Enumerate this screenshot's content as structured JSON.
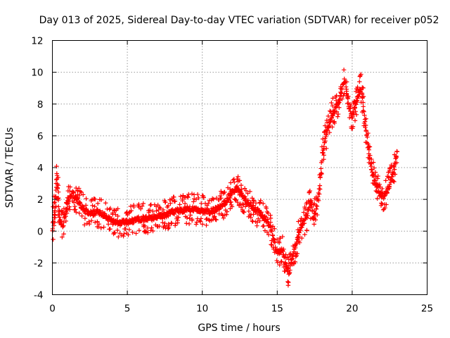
{
  "chart_data": {
    "type": "scatter",
    "title": "Day 013 of 2025, Sidereal Day-to-day VTEC variation (SDTVAR) for receiver p052",
    "xlabel": "GPS time / hours",
    "ylabel": "SDTVAR / TECUs",
    "xlim": [
      0,
      25
    ],
    "ylim": [
      -4,
      12
    ],
    "xticks": [
      0,
      5,
      10,
      15,
      20,
      25
    ],
    "yticks": [
      -4,
      -2,
      0,
      2,
      4,
      6,
      8,
      10,
      12
    ],
    "grid": true,
    "marker": "+",
    "color": "#ff0000",
    "series": [
      {
        "name": "SDTVAR",
        "trace": [
          [
            0.0,
            0.0
          ],
          [
            0.1,
            0.9
          ],
          [
            0.2,
            2.0
          ],
          [
            0.3,
            3.4
          ],
          [
            0.4,
            2.2
          ],
          [
            0.5,
            0.6
          ],
          [
            0.7,
            0.4
          ],
          [
            1.0,
            1.7
          ],
          [
            1.3,
            2.4
          ],
          [
            1.6,
            2.1
          ],
          [
            2.0,
            1.4
          ],
          [
            2.5,
            1.1
          ],
          [
            3.0,
            1.2
          ],
          [
            3.5,
            1.0
          ],
          [
            4.0,
            0.6
          ],
          [
            4.5,
            0.5
          ],
          [
            5.0,
            0.6
          ],
          [
            5.5,
            0.7
          ],
          [
            6.0,
            0.8
          ],
          [
            6.5,
            0.8
          ],
          [
            7.0,
            0.9
          ],
          [
            7.5,
            1.0
          ],
          [
            8.0,
            1.2
          ],
          [
            8.5,
            1.3
          ],
          [
            9.0,
            1.4
          ],
          [
            9.5,
            1.4
          ],
          [
            10.0,
            1.3
          ],
          [
            10.5,
            1.2
          ],
          [
            11.0,
            1.4
          ],
          [
            11.5,
            1.8
          ],
          [
            12.0,
            2.5
          ],
          [
            12.3,
            2.7
          ],
          [
            12.6,
            2.3
          ],
          [
            13.0,
            1.8
          ],
          [
            13.5,
            1.4
          ],
          [
            14.0,
            1.0
          ],
          [
            14.5,
            0.4
          ],
          [
            14.8,
            -0.6
          ],
          [
            15.0,
            -1.4
          ],
          [
            15.3,
            -1.1
          ],
          [
            15.6,
            -2.2
          ],
          [
            15.8,
            -2.6
          ],
          [
            16.0,
            -1.6
          ],
          [
            16.3,
            -0.6
          ],
          [
            16.6,
            0.3
          ],
          [
            17.0,
            1.0
          ],
          [
            17.2,
            2.0
          ],
          [
            17.4,
            0.8
          ],
          [
            17.6,
            1.3
          ],
          [
            17.8,
            2.7
          ],
          [
            18.0,
            4.8
          ],
          [
            18.3,
            6.2
          ],
          [
            18.6,
            7.2
          ],
          [
            18.9,
            7.8
          ],
          [
            19.2,
            8.4
          ],
          [
            19.5,
            9.6
          ],
          [
            19.8,
            7.8
          ],
          [
            20.0,
            7.2
          ],
          [
            20.3,
            8.2
          ],
          [
            20.6,
            9.0
          ],
          [
            20.9,
            6.6
          ],
          [
            21.2,
            4.4
          ],
          [
            21.5,
            3.2
          ],
          [
            21.8,
            2.4
          ],
          [
            22.1,
            2.2
          ],
          [
            22.4,
            2.7
          ],
          [
            22.7,
            3.6
          ],
          [
            23.0,
            5.0
          ]
        ]
      }
    ]
  }
}
